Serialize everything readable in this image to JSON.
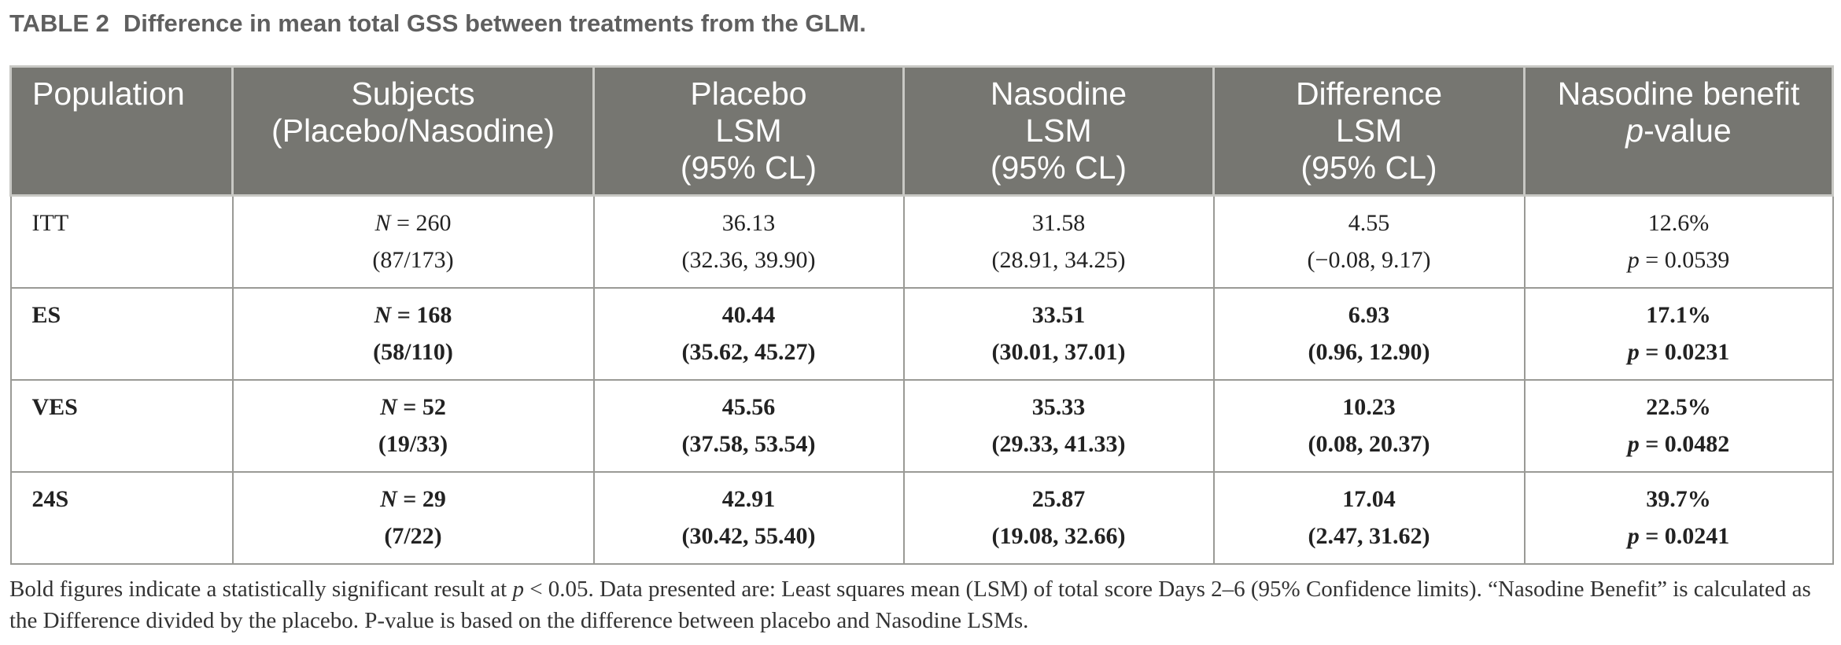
{
  "caption": {
    "label": "TABLE 2",
    "title": "Difference in mean total GSS between treatments from the GLM."
  },
  "table": {
    "headers": [
      [
        "Population"
      ],
      [
        "Subjects",
        "(Placebo/Nasodine)"
      ],
      [
        "Placebo",
        "LSM",
        "(95% CL)"
      ],
      [
        "Nasodine",
        "LSM",
        "(95% CL)"
      ],
      [
        "Difference",
        "LSM",
        "(95% CL)"
      ],
      [
        "Nasodine benefit",
        "p-value"
      ]
    ],
    "rows": [
      {
        "population": "ITT",
        "bold": false,
        "n_prefix": "N",
        "n_value": " = 260",
        "split": "(87/173)",
        "placebo": [
          "36.13",
          "(32.36, 39.90)"
        ],
        "nasodine": [
          "31.58",
          "(28.91, 34.25)"
        ],
        "difference": [
          "4.55",
          "(−0.08, 9.17)"
        ],
        "benefit": "12.6%",
        "p_prefix": "p",
        "p_value": " = 0.0539"
      },
      {
        "population": "ES",
        "bold": true,
        "n_prefix": "N",
        "n_value": " = 168",
        "split": "(58/110)",
        "placebo": [
          "40.44",
          "(35.62, 45.27)"
        ],
        "nasodine": [
          "33.51",
          "(30.01, 37.01)"
        ],
        "difference": [
          "6.93",
          "(0.96, 12.90)"
        ],
        "benefit": "17.1%",
        "p_prefix": "p",
        "p_value": " = 0.0231"
      },
      {
        "population": "VES",
        "bold": true,
        "n_prefix": "N",
        "n_value": " = 52",
        "split": "(19/33)",
        "placebo": [
          "45.56",
          "(37.58, 53.54)"
        ],
        "nasodine": [
          "35.33",
          "(29.33, 41.33)"
        ],
        "difference": [
          "10.23",
          "(0.08, 20.37)"
        ],
        "benefit": "22.5%",
        "p_prefix": "p",
        "p_value": " = 0.0482"
      },
      {
        "population": "24S",
        "bold": true,
        "n_prefix": "N",
        "n_value": " = 29",
        "split": "(7/22)",
        "placebo": [
          "42.91",
          "(30.42, 55.40)"
        ],
        "nasodine": [
          "25.87",
          "(19.08, 32.66)"
        ],
        "difference": [
          "17.04",
          "(2.47, 31.62)"
        ],
        "benefit": "39.7%",
        "p_prefix": "p",
        "p_value": " = 0.0241"
      }
    ]
  },
  "footnote": {
    "part1": "Bold figures indicate a statistically significant result at ",
    "p_symbol": "p",
    "part2": " < 0.05. Data presented are: Least squares mean (LSM) of total score Days 2–6 (95% Confidence limits). “Nasodine Benefit” is calculated as the Difference divided by the placebo. P-value is based on the difference between placebo and Nasodine LSMs."
  }
}
